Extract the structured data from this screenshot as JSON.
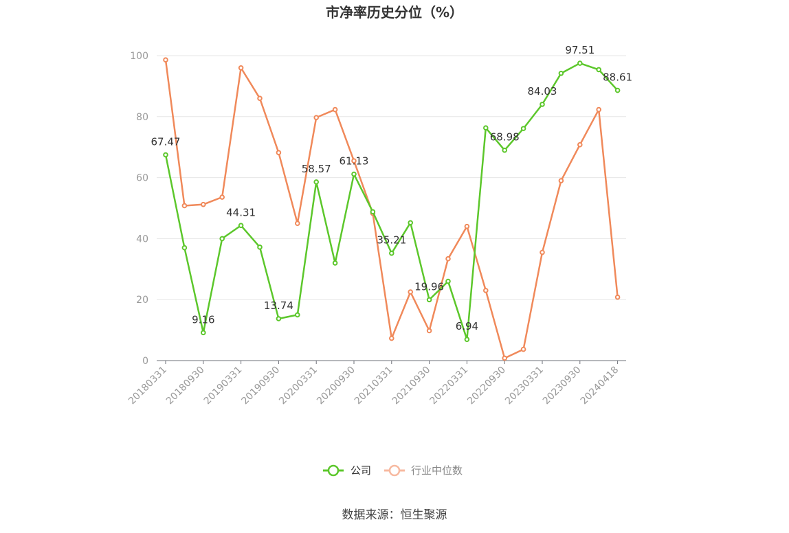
{
  "chart_data": {
    "type": "line",
    "title": "市净率历史分位（%）",
    "source": "数据来源：恒生聚源",
    "ylim": [
      0,
      100
    ],
    "yticks": [
      "0",
      "20",
      "40",
      "60",
      "80",
      "100"
    ],
    "xtick_labels": [
      "20180331",
      "20180930",
      "20190331",
      "20190930",
      "20200331",
      "20200930",
      "20210331",
      "20210930",
      "20220331",
      "20220930",
      "20230331",
      "20230930",
      "20240418"
    ],
    "grid": true,
    "legend_position": "bottom",
    "series": [
      {
        "name": "公司",
        "color": "#5cc72b",
        "values": [
          67.47,
          37.0,
          9.16,
          40.0,
          44.31,
          37.2,
          13.74,
          15.0,
          58.57,
          32.0,
          61.13,
          48.8,
          35.21,
          45.2,
          19.96,
          26.0,
          6.94,
          76.3,
          68.98,
          76.1,
          84.03,
          94.2,
          97.51,
          95.4,
          88.61
        ],
        "labels": {
          "0": "67.47",
          "2": "9.16",
          "4": "44.31",
          "6": "13.74",
          "8": "58.57",
          "10": "61.13",
          "12": "35.21",
          "14": "19.96",
          "16": "6.94",
          "18": "68.98",
          "20": "84.03",
          "22": "97.51",
          "24": "88.61"
        }
      },
      {
        "name": "行业中位数",
        "color": "#f0895a",
        "legend_color": "#f7b9a0",
        "values": [
          98.6,
          50.8,
          51.2,
          53.6,
          96.0,
          86.0,
          68.2,
          45.0,
          79.7,
          82.3,
          65.5,
          48.3,
          7.3,
          22.5,
          9.8,
          33.4,
          44.0,
          23.0,
          0.8,
          3.7,
          35.5,
          59.0,
          70.8,
          82.3,
          20.8
        ]
      }
    ]
  }
}
